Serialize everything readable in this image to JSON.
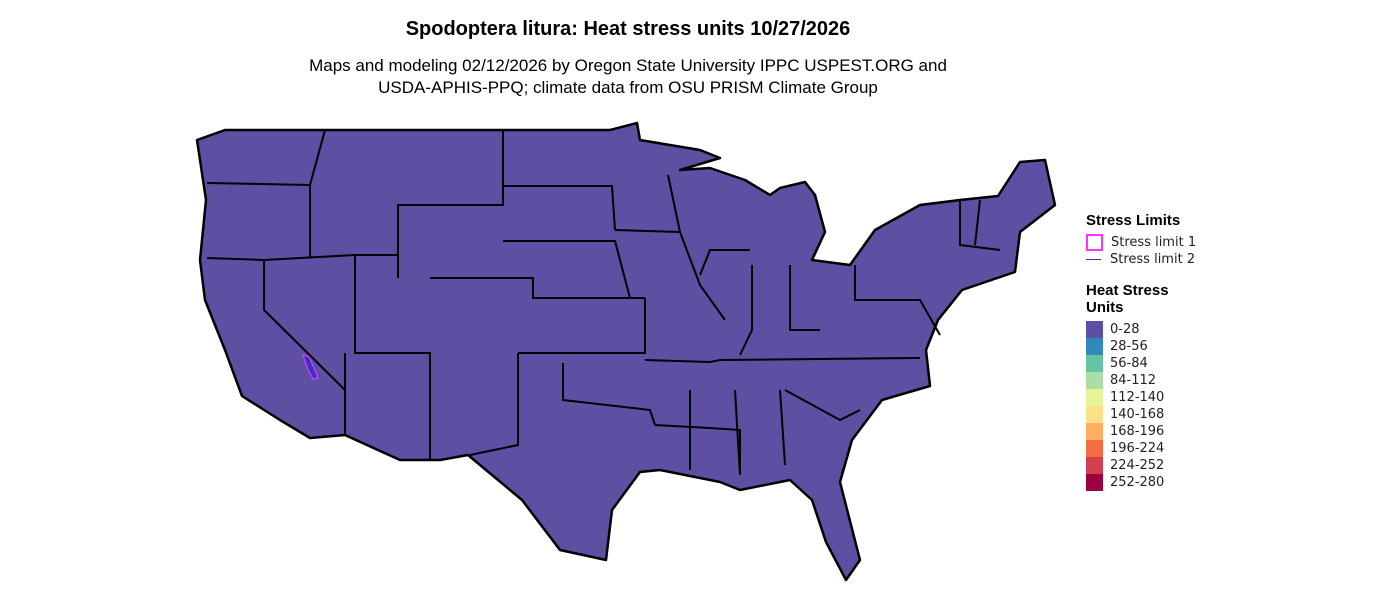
{
  "title": "Spodoptera litura: Heat stress units 10/27/2026",
  "subtitle_line1": "Maps and modeling 02/12/2026 by Oregon State University IPPC USPEST.ORG and",
  "subtitle_line2": "USDA-APHIS-PPQ; climate data from OSU PRISM Climate Group",
  "map": {
    "fill_color": "#5e4fa2",
    "border_color": "#000000",
    "region": "Contiguous United States",
    "all_states_class": "0-28"
  },
  "legend": {
    "stress_title": "Stress Limits",
    "stress_items": [
      {
        "label": "Stress limit 1",
        "color": "#ff33ff"
      },
      {
        "label": "Stress limit 2",
        "color": "#3333cc"
      }
    ],
    "heat_title_line1": "Heat Stress",
    "heat_title_line2": "Units",
    "classes": [
      {
        "label": "0-28",
        "color": "#5e4fa2"
      },
      {
        "label": "28-56",
        "color": "#3288bd"
      },
      {
        "label": "56-84",
        "color": "#66c2a5"
      },
      {
        "label": "84-112",
        "color": "#abdda4"
      },
      {
        "label": "112-140",
        "color": "#e6f598"
      },
      {
        "label": "140-168",
        "color": "#fee08b"
      },
      {
        "label": "168-196",
        "color": "#fdae61"
      },
      {
        "label": "196-224",
        "color": "#f46d43"
      },
      {
        "label": "224-252",
        "color": "#d53e4f"
      },
      {
        "label": "252-280",
        "color": "#9e0142"
      }
    ]
  }
}
